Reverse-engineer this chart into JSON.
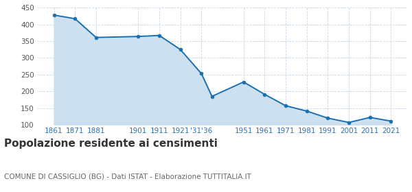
{
  "years": [
    1861,
    1871,
    1881,
    1901,
    1911,
    1921,
    1931,
    1936,
    1951,
    1961,
    1971,
    1981,
    1991,
    2001,
    2011,
    2021
  ],
  "population": [
    428,
    417,
    361,
    364,
    367,
    325,
    253,
    185,
    228,
    191,
    157,
    141,
    120,
    107,
    122,
    111
  ],
  "line_color": "#1a6faf",
  "fill_color": "#cce0f0",
  "marker_color": "#1a6faf",
  "bg_color": "#ffffff",
  "grid_color": "#c8d8e8",
  "title": "Popolazione residente ai censimenti",
  "subtitle": "COMUNE DI CASSIGLIO (BG) - Dati ISTAT - Elaborazione TUTTITALIA.IT",
  "ylim_min": 100,
  "ylim_max": 450,
  "ylabel_step": 50,
  "title_fontsize": 11,
  "subtitle_fontsize": 7.5,
  "tick_fontsize": 7.5,
  "axis_label_color": "#3070b0",
  "ytick_color": "#555555",
  "xlim_min": 1853,
  "xlim_max": 2029
}
